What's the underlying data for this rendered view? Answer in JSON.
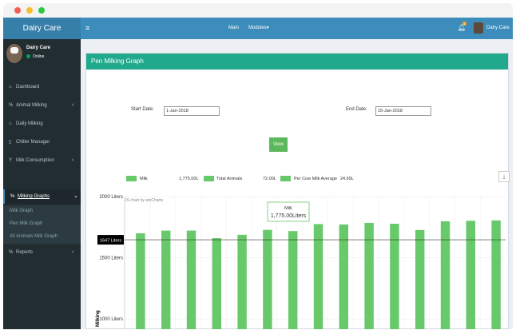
{
  "header": {
    "brand": "Dairy Care",
    "menu_icon": "≡",
    "nav_main": "Main",
    "nav_modules": "Modules▾",
    "bell_icon": "bell-icon",
    "badge": "1",
    "user_name": "Dairy Care"
  },
  "sidebar": {
    "profile_name": "Dairy Care",
    "profile_status": "Online",
    "items": [
      {
        "icon": "⌂",
        "label": "Dashboard",
        "arrow": ""
      },
      {
        "icon": "%",
        "label": "Animal Milking",
        "arrow": "‹"
      },
      {
        "icon": "⌂",
        "label": "Daily Milking",
        "arrow": ""
      },
      {
        "icon": "▯",
        "label": "Chiller Manager",
        "arrow": ""
      },
      {
        "icon": "Y",
        "label": "Milk Consumption",
        "arrow": "‹"
      },
      {
        "icon": "%",
        "label": "Milking Graphs",
        "arrow": "⌄"
      },
      {
        "icon": "%",
        "label": "Reports",
        "arrow": "‹"
      }
    ],
    "subitems": [
      "Milk Graph",
      "Pen Milk Graph",
      "All Animals Milk Graph"
    ]
  },
  "panel": {
    "title": "Pen Milking Graph",
    "start_label": "Start Date:",
    "start_value": "1-Jan-2018",
    "end_label": "End Date:",
    "end_value": "15-Jan-2018",
    "view_label": "View",
    "legend": [
      {
        "name": "Milk",
        "value": "1,775.00L"
      },
      {
        "name": "Total Animals",
        "value": "72.00L"
      },
      {
        "name": "Per Cow Milk Average",
        "value": "24.65L"
      }
    ],
    "credit": "JS chart by amCharts",
    "accent": "#20a98c",
    "bar_color": "#67c96a"
  },
  "chart_data": {
    "type": "bar",
    "series": [
      {
        "name": "Milk",
        "values": [
          1700,
          1722,
          1722,
          1660,
          1688,
          1728,
          1718,
          1775,
          1772,
          1785,
          1778,
          1727,
          1798,
          1802,
          1805
        ]
      }
    ],
    "ylabel": "Milking",
    "yticks": [
      "2000 Liters",
      "1500 Liters",
      "1000 Liters"
    ],
    "ylim": [
      910,
      2000
    ],
    "cursor_value": 1647,
    "cursor_label": "1647 Liters",
    "tooltip": {
      "series": "Milk",
      "value": "1,775.00Liters"
    }
  }
}
